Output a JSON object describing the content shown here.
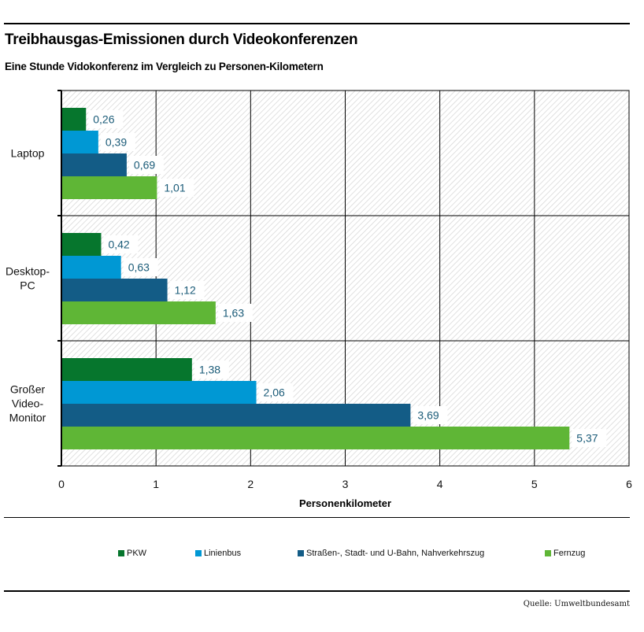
{
  "header": {
    "title": "Treibhausgas-Emissionen durch Videokonferenzen",
    "subtitle": "Eine Stunde Vidokonferenz im Vergleich zu Personen-Kilometern"
  },
  "source": "Quelle: Umweltbundesamt",
  "chart_data": {
    "type": "bar",
    "orientation": "horizontal",
    "title": "Treibhausgas-Emissionen durch Videokonferenzen",
    "subtitle": "Eine Stunde Vidokonferenz im Vergleich zu Personen-Kilometern",
    "xlabel": "Personenkilometer",
    "ylabel": "",
    "xlim": [
      0,
      6
    ],
    "xticks": [
      "0",
      "1",
      "2",
      "3",
      "4",
      "5",
      "6"
    ],
    "grid": true,
    "legend_position": "bottom",
    "categories": [
      {
        "label_lines": [
          "Laptop"
        ]
      },
      {
        "label_lines": [
          "Desktop-",
          "PC"
        ]
      },
      {
        "label_lines": [
          "Großer",
          "Video-",
          "Monitor"
        ]
      }
    ],
    "category_names": [
      "Laptop",
      "Desktop-PC",
      "Großer Video-Monitor"
    ],
    "series": [
      {
        "name": "PKW",
        "color": "#06762d",
        "values": [
          0.26,
          0.42,
          1.38
        ],
        "labels": [
          "0,26",
          "0,42",
          "1,38"
        ]
      },
      {
        "name": "Linienbus",
        "color": "#0098d4",
        "values": [
          0.39,
          0.63,
          2.06
        ],
        "labels": [
          "0,39",
          "0,63",
          "2,06"
        ]
      },
      {
        "name": "Straßen-, Stadt- und U-Bahn, Nahverkehrszug",
        "color": "#135c86",
        "values": [
          0.69,
          1.12,
          3.69
        ],
        "labels": [
          "0,69",
          "1,12",
          "3,69"
        ]
      },
      {
        "name": "Fernzug",
        "color": "#5fb636",
        "values": [
          1.01,
          1.63,
          5.37
        ],
        "labels": [
          "1,01",
          "1,63",
          "5,37"
        ]
      }
    ]
  }
}
